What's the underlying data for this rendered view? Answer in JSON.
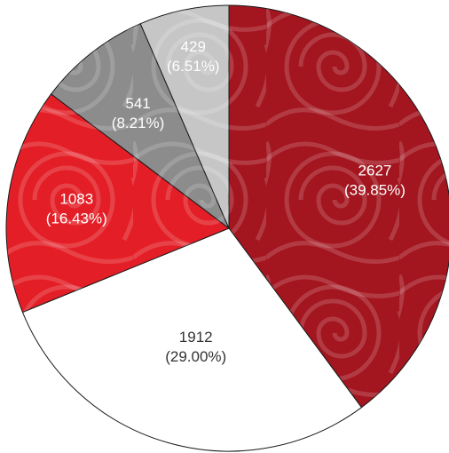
{
  "chart_data": {
    "type": "pie",
    "title": "",
    "slices": [
      {
        "value": 2627,
        "value_label": "2627",
        "percent_label": "(39.85%)",
        "color": "#a3151f",
        "text_color": "#ffffff"
      },
      {
        "value": 1912,
        "value_label": "1912",
        "percent_label": "(29.00%)",
        "color": "#ffffff",
        "text_color": "#333333"
      },
      {
        "value": 1083,
        "value_label": "1083",
        "percent_label": "(16.43%)",
        "color": "#e41e26",
        "text_color": "#ffffff"
      },
      {
        "value": 541,
        "value_label": "541",
        "percent_label": "(8.21%)",
        "color": "#8c8c8c",
        "text_color": "#ffffff"
      },
      {
        "value": 429,
        "value_label": "429",
        "percent_label": "(6.51%)",
        "color": "#c6c6c6",
        "text_color": "#ffffff"
      }
    ],
    "start_angle": "12 o'clock",
    "direction": "clockwise",
    "legend": "none",
    "slice_pattern": "decorative swirl pattern on colored slices"
  }
}
